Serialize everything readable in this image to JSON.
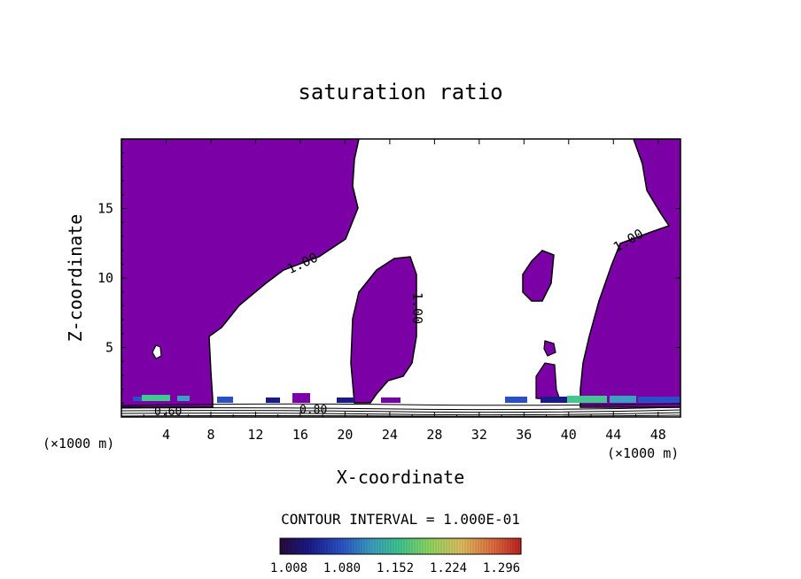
{
  "chart_data": {
    "type": "heatmap",
    "title": "saturation ratio",
    "xlabel": "X-coordinate",
    "ylabel": "Z-coordinate",
    "x_unit": "(×1000 m)",
    "y_unit": "(×1000 m)",
    "xlim": [
      0,
      50
    ],
    "ylim": [
      0,
      20
    ],
    "x_ticks": [
      "4",
      "8",
      "12",
      "16",
      "20",
      "24",
      "28",
      "32",
      "36",
      "40",
      "44",
      "48"
    ],
    "y_ticks": [
      "5",
      "10",
      "15"
    ],
    "contour_interval_label": "CONTOUR INTERVAL = 1.000E-01",
    "contour_labels": [
      "1.00",
      "1.00",
      "1.00",
      "0.60",
      "0.80"
    ],
    "colorbar": {
      "ticks": [
        "1.008",
        "1.080",
        "1.152",
        "1.224",
        "1.296"
      ],
      "colors": [
        "#2a0a3a",
        "#1a1a8a",
        "#2a50c8",
        "#3aa0c0",
        "#40c890",
        "#90d860",
        "#e0c060",
        "#e07040",
        "#c02020"
      ]
    },
    "fill_color": "#7b00a6"
  }
}
